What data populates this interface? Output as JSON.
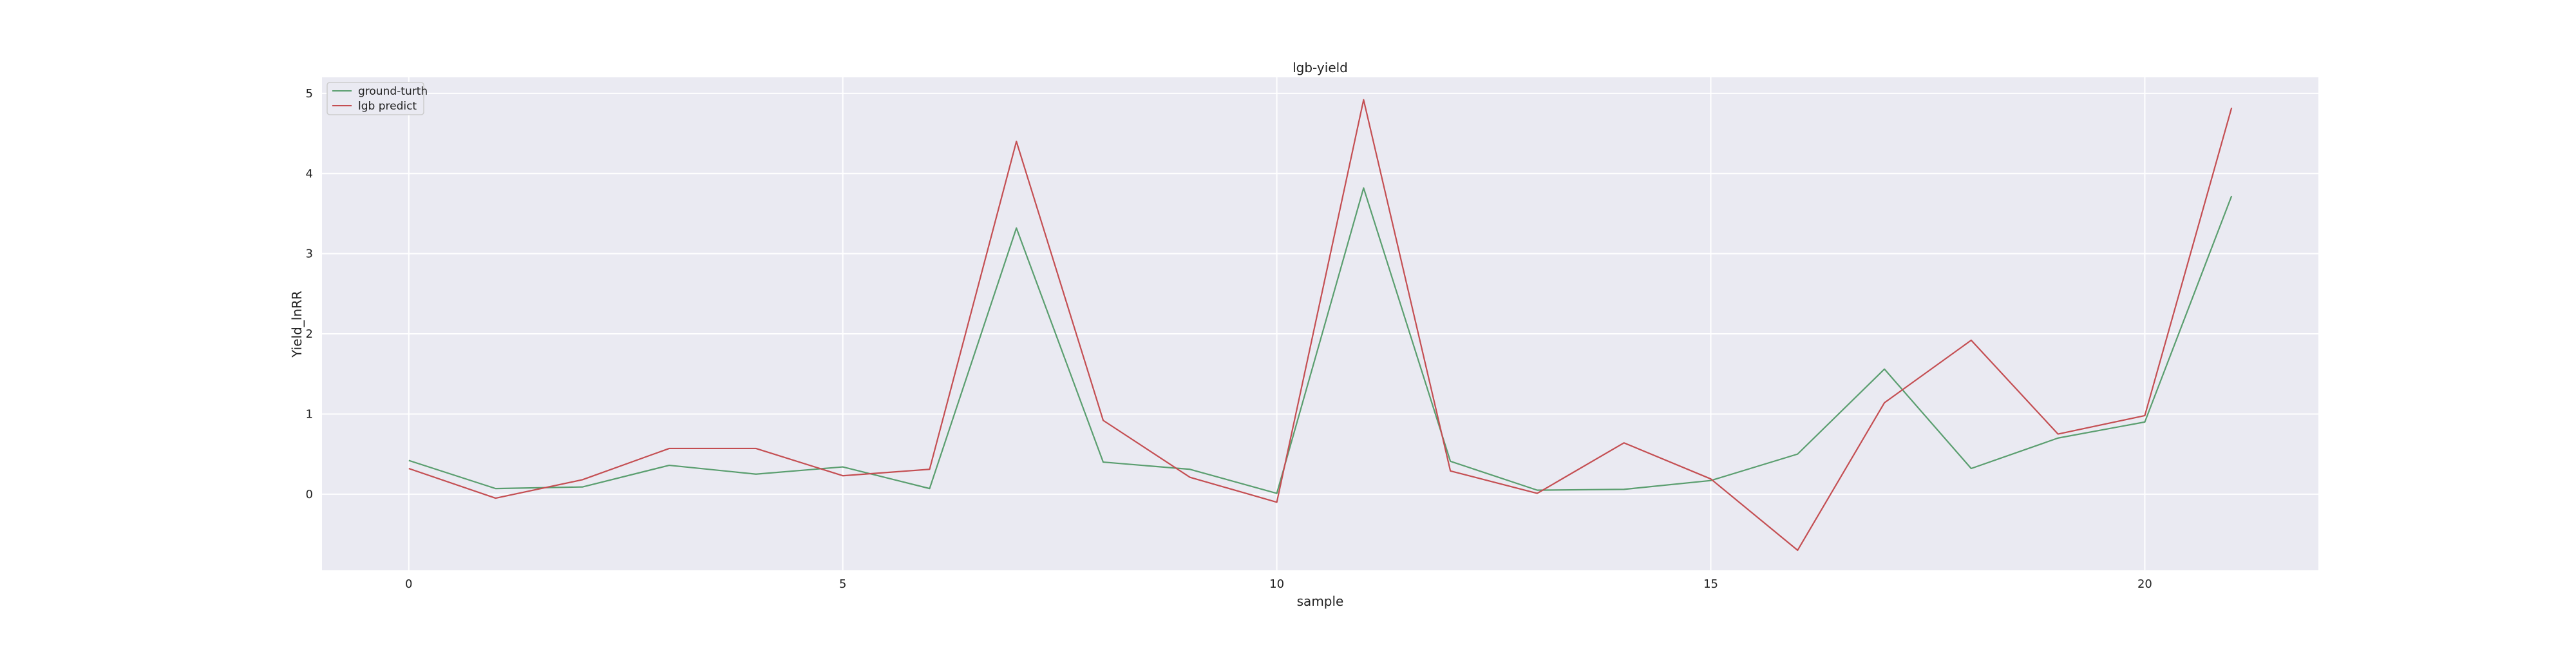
{
  "chart_data": {
    "type": "line",
    "title": "lgb-yield",
    "xlabel": "sample",
    "ylabel": "Yield_lnRR",
    "x": [
      0,
      1,
      2,
      3,
      4,
      5,
      6,
      7,
      8,
      9,
      10,
      11,
      12,
      13,
      14,
      15,
      16,
      17,
      18,
      19,
      20,
      21
    ],
    "xlim": [
      -1.0,
      22.0
    ],
    "ylim": [
      -0.95,
      5.2
    ],
    "xticks": [
      "0",
      "5",
      "10",
      "15",
      "20"
    ],
    "yticks": [
      "0",
      "1",
      "2",
      "3",
      "4",
      "5"
    ],
    "grid": true,
    "legend_position": "top-left",
    "series": [
      {
        "name": "ground-turth",
        "color": "#5a9e6f",
        "values": [
          0.42,
          0.07,
          0.09,
          0.36,
          0.25,
          0.34,
          0.07,
          3.32,
          0.4,
          0.31,
          0.01,
          3.82,
          0.41,
          0.05,
          0.06,
          0.17,
          0.5,
          1.56,
          0.32,
          0.7,
          0.9,
          3.72
        ]
      },
      {
        "name": "lgb predict",
        "color": "#c44e52",
        "values": [
          0.32,
          -0.05,
          0.18,
          0.57,
          0.57,
          0.23,
          0.31,
          4.4,
          0.92,
          0.21,
          -0.1,
          4.92,
          0.29,
          0.01,
          0.64,
          0.19,
          -0.7,
          1.14,
          1.92,
          0.75,
          0.98,
          4.82
        ]
      }
    ]
  }
}
